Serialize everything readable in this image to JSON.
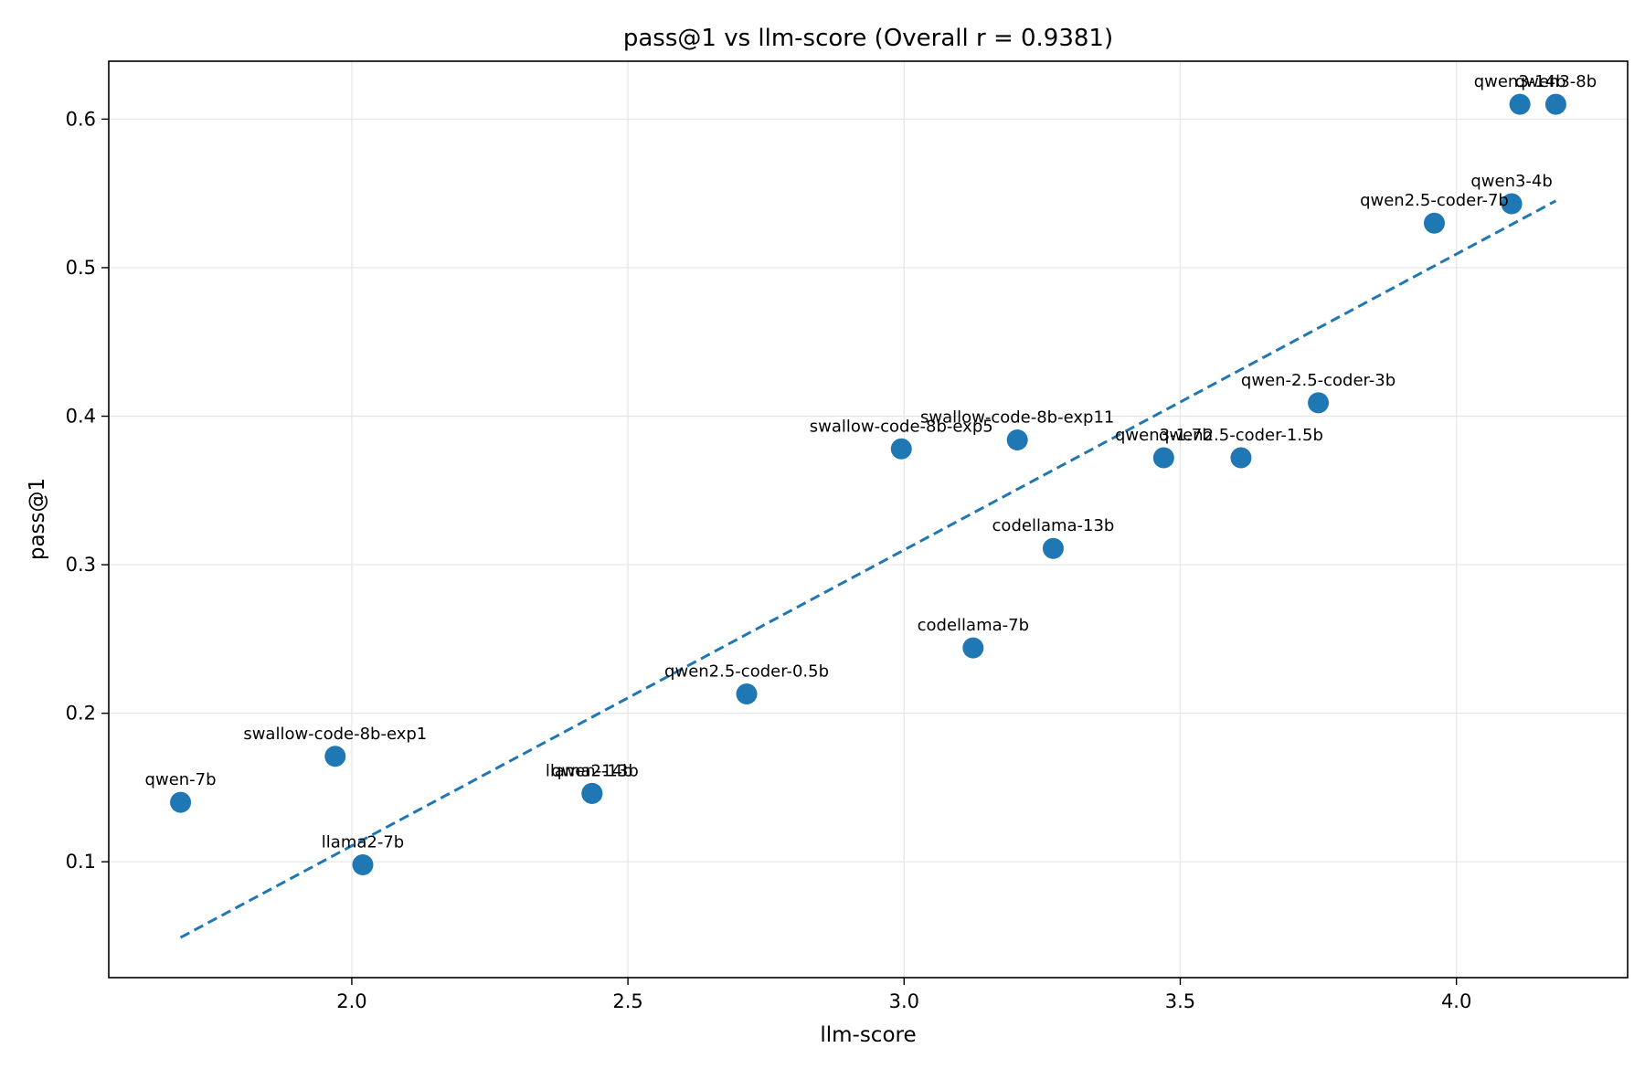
{
  "chart_data": {
    "type": "scatter",
    "title": "pass@1 vs llm-score (Overall r = 0.9381)",
    "xlabel": "llm-score",
    "ylabel": "pass@1",
    "xlim": [
      1.56,
      4.31
    ],
    "ylim": [
      0.022,
      0.639
    ],
    "xticks": [
      2.0,
      2.5,
      3.0,
      3.5,
      4.0
    ],
    "xtick_labels": [
      "2.0",
      "2.5",
      "3.0",
      "3.5",
      "4.0"
    ],
    "yticks": [
      0.1,
      0.2,
      0.3,
      0.4,
      0.5,
      0.6
    ],
    "ytick_labels": [
      "0.1",
      "0.2",
      "0.3",
      "0.4",
      "0.5",
      "0.6"
    ],
    "grid": true,
    "point_color": "#1f77b4",
    "line_color": "#1f77b4",
    "points": [
      {
        "label": "qwen-7b",
        "x": 1.69,
        "y": 0.14
      },
      {
        "label": "swallow-code-8b-exp1",
        "x": 1.97,
        "y": 0.171
      },
      {
        "label": "llama2-7b",
        "x": 2.02,
        "y": 0.098
      },
      {
        "label": "llama2-13b",
        "x": 2.435,
        "y": 0.146
      },
      {
        "label": "qwen-14b",
        "x": 2.435,
        "y": 0.146
      },
      {
        "label": "qwen2.5-coder-0.5b",
        "x": 2.715,
        "y": 0.213
      },
      {
        "label": "swallow-code-8b-exp5",
        "x": 2.995,
        "y": 0.378
      },
      {
        "label": "codellama-7b",
        "x": 3.125,
        "y": 0.244
      },
      {
        "label": "swallow-code-8b-exp11",
        "x": 3.205,
        "y": 0.384
      },
      {
        "label": "codellama-13b",
        "x": 3.27,
        "y": 0.311
      },
      {
        "label": "qwen3-1.7b",
        "x": 3.47,
        "y": 0.372
      },
      {
        "label": "qwen2.5-coder-1.5b",
        "x": 3.61,
        "y": 0.372
      },
      {
        "label": "qwen-2.5-coder-3b",
        "x": 3.75,
        "y": 0.409
      },
      {
        "label": "qwen2.5-coder-7b",
        "x": 3.96,
        "y": 0.53
      },
      {
        "label": "qwen3-4b",
        "x": 4.1,
        "y": 0.543
      },
      {
        "label": "qwen3-14b",
        "x": 4.115,
        "y": 0.61
      },
      {
        "label": "qwen3-8b",
        "x": 4.18,
        "y": 0.61
      }
    ],
    "fit_line": {
      "style": "dashed",
      "x": [
        1.69,
        4.18
      ],
      "y": [
        0.049,
        0.545
      ]
    }
  }
}
